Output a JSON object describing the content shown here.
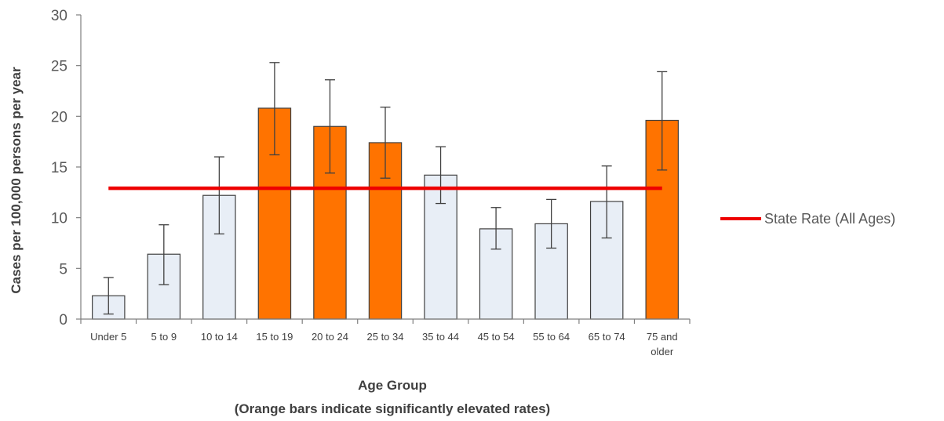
{
  "chart_data": {
    "type": "bar",
    "title": "",
    "ylabel": "Cases per 100,000 persons per year",
    "xlabel": "Age Group",
    "xlabel_note": "(Orange bars indicate significantly elevated rates)",
    "ylim": [
      0,
      30
    ],
    "yticks": [
      0,
      5,
      10,
      15,
      20,
      25,
      30
    ],
    "grid": false,
    "legend_position": "right",
    "categories": [
      [
        "Under 5"
      ],
      [
        "5 to 9"
      ],
      [
        "10 to 14"
      ],
      [
        "15 to 19"
      ],
      [
        "20 to 24"
      ],
      [
        "25 to 34"
      ],
      [
        "35 to 44"
      ],
      [
        "45 to 54"
      ],
      [
        "55 to 64"
      ],
      [
        "65 to 74"
      ],
      [
        "75 and",
        "older"
      ]
    ],
    "values": [
      2.3,
      6.4,
      12.2,
      20.8,
      19.0,
      17.4,
      14.2,
      8.9,
      9.4,
      11.6,
      19.6
    ],
    "error_low": [
      0.5,
      3.4,
      8.4,
      16.2,
      14.4,
      13.9,
      11.4,
      6.9,
      7.0,
      8.0,
      14.7
    ],
    "error_high": [
      4.1,
      9.3,
      16.0,
      25.3,
      23.6,
      20.9,
      17.0,
      11.0,
      11.8,
      15.1,
      24.4
    ],
    "significant": [
      false,
      false,
      false,
      true,
      true,
      true,
      false,
      false,
      false,
      false,
      true
    ],
    "reference_line": {
      "name": "State Rate (All Ages)",
      "value": 12.9
    },
    "colors": {
      "bar_default": "#e8eef6",
      "bar_significant": "#ff7300",
      "bar_stroke": "#404040",
      "reference_line": "#ee0000",
      "axis": "#7f7f7f",
      "error_bar": "#404040"
    }
  }
}
